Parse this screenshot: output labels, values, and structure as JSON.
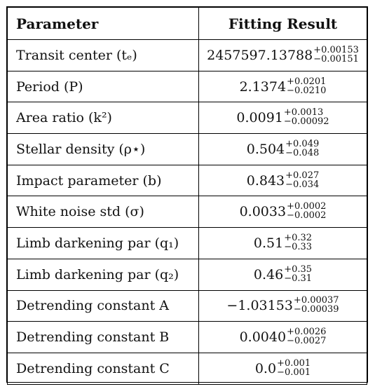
{
  "header": {
    "parameter": "Parameter",
    "result": "Fitting Result"
  },
  "rows": [
    {
      "name": "Transit center (tₑ)",
      "value": "2457597.13788",
      "plus": "+0.00153",
      "minus": "−0.00151"
    },
    {
      "name": "Period (P)",
      "value": "2.1374",
      "plus": "+0.0201",
      "minus": "−0.0210"
    },
    {
      "name": "Area ratio (k²)",
      "value": "0.0091",
      "plus": "+0.0013",
      "minus": "−0.00092"
    },
    {
      "name": "Stellar density (ρ⋆)",
      "value": "0.504",
      "plus": "+0.049",
      "minus": "−0.048"
    },
    {
      "name": "Impact parameter (b)",
      "value": "0.843",
      "plus": "+0.027",
      "minus": "−0.034"
    },
    {
      "name": "White noise std (σ)",
      "value": "0.0033",
      "plus": "+0.0002",
      "minus": "−0.0002"
    },
    {
      "name": "Limb darkening par (q₁)",
      "value": "0.51",
      "plus": "+0.32",
      "minus": "−0.33"
    },
    {
      "name": "Limb darkening par (q₂)",
      "value": "0.46",
      "plus": "+0.35",
      "minus": "−0.31"
    },
    {
      "name": "Detrending constant A",
      "value": "−1.03153",
      "plus": "+0.00037",
      "minus": "−0.00039"
    },
    {
      "name": "Detrending constant B",
      "value": "0.0040",
      "plus": "+0.0026",
      "minus": "−0.0027"
    },
    {
      "name": "Detrending constant C",
      "value": "0.0",
      "plus": "+0.001",
      "minus": "−0.001"
    }
  ]
}
